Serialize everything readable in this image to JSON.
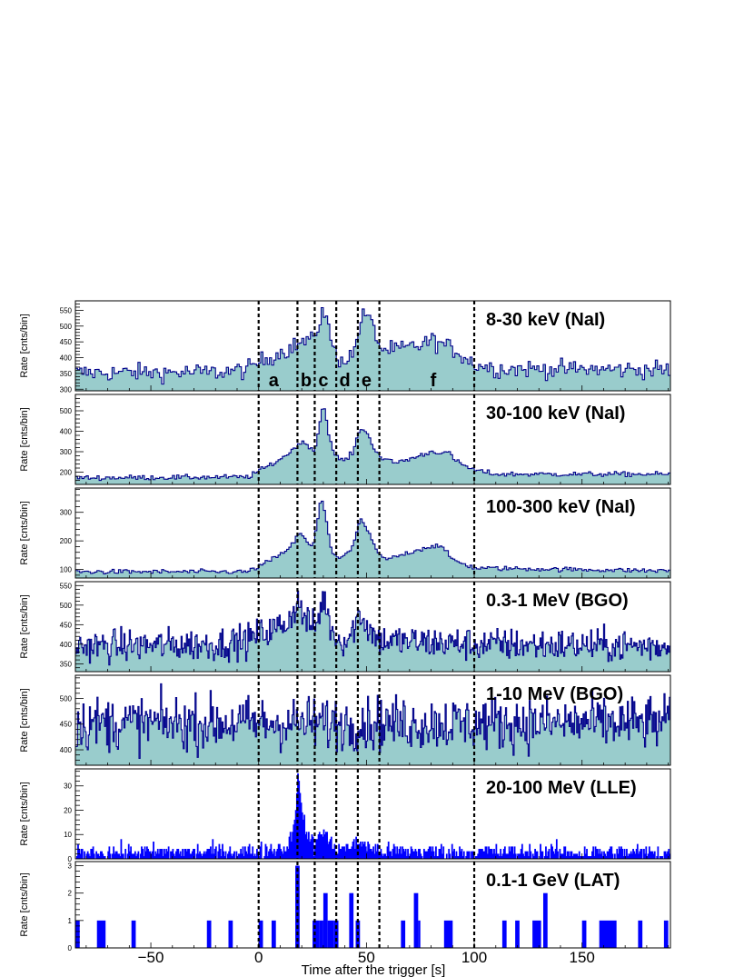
{
  "chart_data": {
    "type": "area",
    "xlabel": "Time after the trigger [s]",
    "xlim": [
      -85,
      191
    ],
    "x_ticks": [
      -50,
      0,
      50,
      100,
      150
    ],
    "bin_width_s": 0.5,
    "fill_color": "#99cccc",
    "line_color": "#00008b",
    "bar_color": "#0000ff",
    "interval_boundaries": [
      0,
      18,
      26,
      36,
      46,
      56,
      100
    ],
    "intervals": [
      {
        "label": "a",
        "x": 7
      },
      {
        "label": "b",
        "x": 22
      },
      {
        "label": "c",
        "x": 30
      },
      {
        "label": "d",
        "x": 40
      },
      {
        "label": "e",
        "x": 50
      },
      {
        "label": "f",
        "x": 81
      }
    ],
    "panels": [
      {
        "name": "8-30 keV (NaI)",
        "ylabel": "Rate [cnts/bin]",
        "ylim": [
          295,
          580
        ],
        "yticks": [
          300,
          350,
          400,
          450,
          500,
          550
        ],
        "bin": 1,
        "noise": 14,
        "style": "hist",
        "profile": [
          [
            -85,
            352
          ],
          [
            -20,
            354
          ],
          [
            -5,
            362
          ],
          [
            0,
            385
          ],
          [
            17,
            438
          ],
          [
            22,
            455
          ],
          [
            25,
            450
          ],
          [
            27,
            485
          ],
          [
            30,
            560
          ],
          [
            33,
            475
          ],
          [
            36,
            400
          ],
          [
            40,
            395
          ],
          [
            44,
            410
          ],
          [
            47,
            510
          ],
          [
            50,
            545
          ],
          [
            53,
            495
          ],
          [
            57,
            425
          ],
          [
            65,
            425
          ],
          [
            75,
            440
          ],
          [
            80,
            455
          ],
          [
            86,
            440
          ],
          [
            92,
            420
          ],
          [
            100,
            380
          ],
          [
            110,
            365
          ],
          [
            191,
            362
          ]
        ]
      },
      {
        "name": "30-100 keV (NaI)",
        "ylabel": "Rate [cnts/bin]",
        "ylim": [
          140,
          580
        ],
        "yticks": [
          200,
          300,
          400,
          500
        ],
        "bin": 1,
        "noise": 6,
        "style": "hist",
        "profile": [
          [
            -85,
            172
          ],
          [
            -5,
            176
          ],
          [
            0,
            205
          ],
          [
            8,
            250
          ],
          [
            15,
            300
          ],
          [
            19,
            345
          ],
          [
            23,
            335
          ],
          [
            26,
            300
          ],
          [
            28,
            420
          ],
          [
            30,
            540
          ],
          [
            32,
            420
          ],
          [
            35,
            280
          ],
          [
            40,
            255
          ],
          [
            44,
            300
          ],
          [
            47,
            420
          ],
          [
            50,
            395
          ],
          [
            53,
            330
          ],
          [
            57,
            270
          ],
          [
            63,
            245
          ],
          [
            72,
            270
          ],
          [
            80,
            300
          ],
          [
            88,
            295
          ],
          [
            92,
            250
          ],
          [
            100,
            210
          ],
          [
            110,
            190
          ],
          [
            191,
            190
          ]
        ]
      },
      {
        "name": "100-300 keV (NaI)",
        "ylabel": "Rate [cnts/bin]",
        "ylim": [
          70,
          385
        ],
        "yticks": [
          100,
          200,
          300
        ],
        "bin": 1,
        "noise": 4,
        "style": "hist",
        "profile": [
          [
            -85,
            92
          ],
          [
            -5,
            92
          ],
          [
            0,
            110
          ],
          [
            10,
            150
          ],
          [
            16,
            190
          ],
          [
            19,
            230
          ],
          [
            22,
            200
          ],
          [
            25,
            175
          ],
          [
            27,
            250
          ],
          [
            29,
            360
          ],
          [
            31,
            290
          ],
          [
            34,
            160
          ],
          [
            38,
            135
          ],
          [
            44,
            180
          ],
          [
            47,
            280
          ],
          [
            50,
            245
          ],
          [
            54,
            175
          ],
          [
            58,
            135
          ],
          [
            62,
            140
          ],
          [
            70,
            160
          ],
          [
            78,
            178
          ],
          [
            84,
            185
          ],
          [
            90,
            135
          ],
          [
            100,
            105
          ],
          [
            191,
            95
          ]
        ]
      },
      {
        "name": "0.3-1 MeV (BGO)",
        "ylabel": "Rate [cnts/bin]",
        "ylim": [
          330,
          560
        ],
        "yticks": [
          350,
          400,
          450,
          500,
          550
        ],
        "bin": 0.5,
        "noise": 21,
        "style": "hist",
        "profile": [
          [
            -85,
            395
          ],
          [
            -20,
            400
          ],
          [
            -5,
            410
          ],
          [
            0,
            425
          ],
          [
            8,
            440
          ],
          [
            14,
            460
          ],
          [
            18,
            510
          ],
          [
            22,
            460
          ],
          [
            26,
            440
          ],
          [
            28,
            470
          ],
          [
            30,
            525
          ],
          [
            33,
            450
          ],
          [
            37,
            410
          ],
          [
            42,
            415
          ],
          [
            47,
            480
          ],
          [
            51,
            440
          ],
          [
            56,
            410
          ],
          [
            100,
            400
          ],
          [
            191,
            395
          ]
        ]
      },
      {
        "name": "1-10 MeV (BGO)",
        "ylabel": "Rate [cnts/bin]",
        "ylim": [
          370,
          545
        ],
        "yticks": [
          400,
          450,
          500
        ],
        "bin": 0.5,
        "noise": 26,
        "style": "hist",
        "profile": [
          [
            -85,
            452
          ],
          [
            191,
            452
          ]
        ]
      },
      {
        "name": "20-100 MeV (LLE)",
        "ylabel": "Rate [cnts/bin]",
        "ylim": [
          0,
          37
        ],
        "yticks": [
          0,
          10,
          20,
          30
        ],
        "bin": 0.5,
        "noise": 1.8,
        "style": "bars",
        "profile": [
          [
            -85,
            2.5
          ],
          [
            0,
            3
          ],
          [
            14,
            5
          ],
          [
            17,
            18
          ],
          [
            18,
            35
          ],
          [
            19,
            27
          ],
          [
            21,
            16
          ],
          [
            23,
            9
          ],
          [
            26,
            5
          ],
          [
            28,
            10
          ],
          [
            30,
            12
          ],
          [
            32,
            8
          ],
          [
            35,
            5
          ],
          [
            40,
            4
          ],
          [
            45,
            6
          ],
          [
            48,
            7
          ],
          [
            52,
            4
          ],
          [
            58,
            3
          ],
          [
            191,
            2.5
          ]
        ]
      },
      {
        "name": "0.1-1 GeV (LAT)",
        "ylabel": "Rate [cnts/bin]",
        "ylim": [
          0,
          3.15
        ],
        "yticks": [
          0,
          1,
          2,
          3
        ],
        "bin": 0.5,
        "style": "events",
        "events": [
          [
            -85,
            -83,
            1
          ],
          [
            -75,
            -71,
            1
          ],
          [
            -59,
            -57,
            1
          ],
          [
            -24,
            -22,
            1
          ],
          [
            -14,
            -12,
            1
          ],
          [
            0,
            2,
            1
          ],
          [
            6,
            8,
            1
          ],
          [
            17,
            19,
            3
          ],
          [
            25,
            28,
            1
          ],
          [
            28,
            30,
            1
          ],
          [
            30,
            32,
            2
          ],
          [
            32,
            35,
            1
          ],
          [
            35,
            37,
            1
          ],
          [
            42,
            44,
            2
          ],
          [
            45,
            47,
            1
          ],
          [
            66,
            68,
            1
          ],
          [
            72,
            74,
            2
          ],
          [
            74,
            75,
            1
          ],
          [
            86,
            90,
            1
          ],
          [
            113,
            115,
            1
          ],
          [
            119,
            121,
            1
          ],
          [
            127,
            131,
            1
          ],
          [
            132,
            134,
            2
          ],
          [
            150,
            152,
            1
          ],
          [
            158,
            166,
            1
          ],
          [
            176,
            178,
            1
          ],
          [
            188,
            190,
            1
          ]
        ]
      }
    ]
  }
}
